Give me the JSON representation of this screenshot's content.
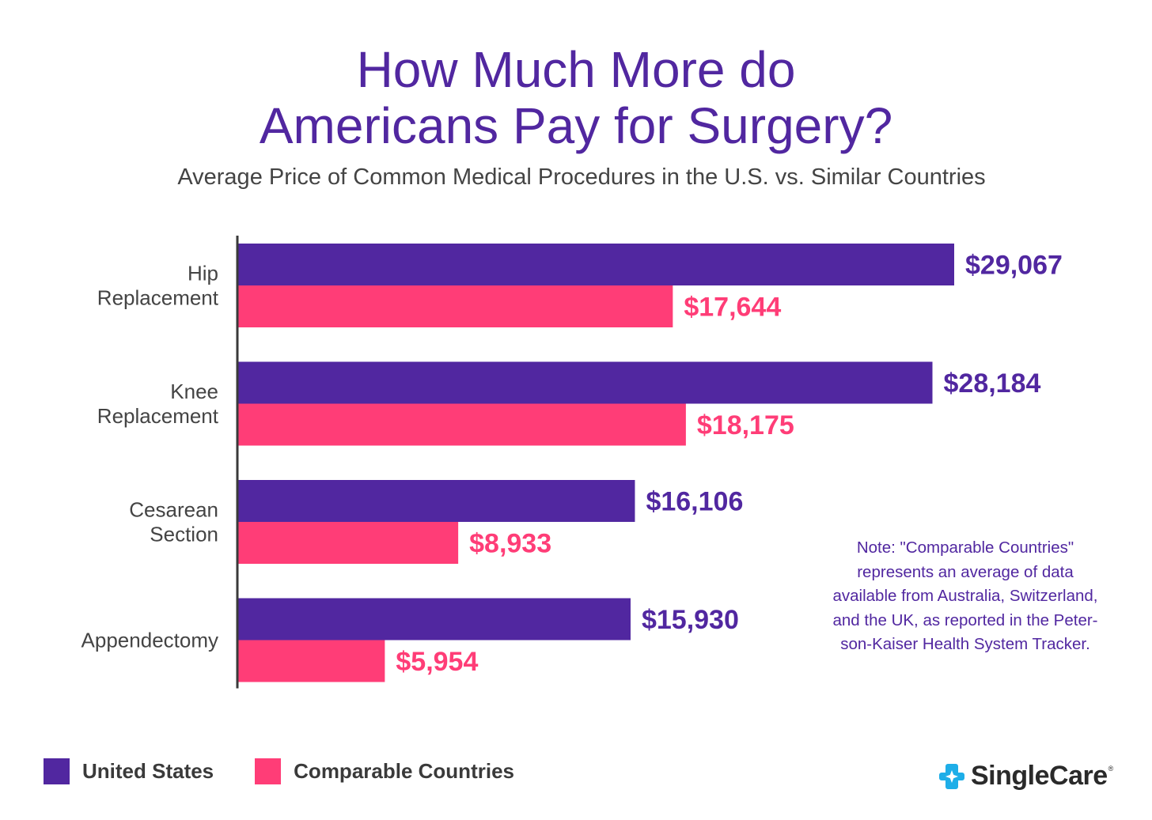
{
  "chart_data": {
    "type": "bar",
    "orientation": "horizontal",
    "title_lines": [
      "How Much More do",
      "Americans Pay for Surgery?"
    ],
    "subtitle": "Average Price of Common Medical Procedures in the U.S. vs. Similar Countries",
    "categories": [
      [
        "Hip",
        "Replacement"
      ],
      [
        "Knee",
        "Replacement"
      ],
      [
        "Cesarean",
        "Section"
      ],
      [
        "Appendectomy"
      ]
    ],
    "series": [
      {
        "name": "United States",
        "color": "#5127a0",
        "values": [
          29067,
          28184,
          16106,
          15930
        ],
        "labels": [
          "$29,067",
          "$28,184",
          "$16,106",
          "$15,930"
        ]
      },
      {
        "name": "Comparable Countries",
        "color": "#ff3d77",
        "values": [
          17644,
          18175,
          8933,
          5954
        ],
        "labels": [
          "$17,644",
          "$18,175",
          "$8,933",
          "$5,954"
        ]
      }
    ],
    "xlim": [
      0,
      29067
    ],
    "grid": false,
    "legend_position": "bottom-left"
  },
  "note": {
    "lines": [
      "Note: \"Comparable Countries\"",
      "represents an average of data",
      "available from Australia, Switzerland,",
      "and the UK, as reported in the Peter-",
      "son-Kaiser Health System Tracker."
    ]
  },
  "legend": {
    "items": [
      {
        "label": "United States",
        "color": "#5127a0"
      },
      {
        "label": "Comparable Countries",
        "color": "#ff3d77"
      }
    ]
  },
  "logo": {
    "text": "SingleCare",
    "mark": "®",
    "icon": "singlecare-cross-icon",
    "color": "#1eaee8"
  }
}
